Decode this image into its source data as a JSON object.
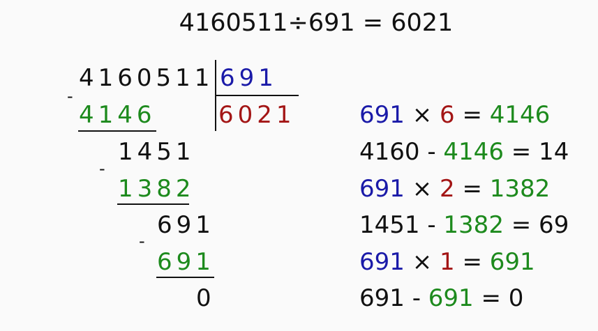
{
  "title": "4160511÷691 = 6021",
  "colors": {
    "black": "#111111",
    "blue": "#1a1aa8",
    "red": "#a31515",
    "green": "#1d8a1d"
  },
  "division": {
    "dividend": "4160511",
    "divisor": "691",
    "quotient": "6021",
    "steps": [
      {
        "subtrahend": "4146",
        "remainder": "1451"
      },
      {
        "subtrahend": "1382",
        "remainder": "691"
      },
      {
        "subtrahend": "691",
        "remainder": "0"
      }
    ],
    "minus_sign": "-"
  },
  "equations": [
    [
      {
        "text": "691",
        "color": "blue"
      },
      {
        "text": " × ",
        "color": "black"
      },
      {
        "text": "6",
        "color": "red"
      },
      {
        "text": " = ",
        "color": "black"
      },
      {
        "text": "4146",
        "color": "green"
      }
    ],
    [
      {
        "text": "4160 - ",
        "color": "black"
      },
      {
        "text": "4146",
        "color": "green"
      },
      {
        "text": " = 14",
        "color": "black"
      }
    ],
    [
      {
        "text": "691",
        "color": "blue"
      },
      {
        "text": " × ",
        "color": "black"
      },
      {
        "text": "2",
        "color": "red"
      },
      {
        "text": " = ",
        "color": "black"
      },
      {
        "text": "1382",
        "color": "green"
      }
    ],
    [
      {
        "text": "1451 - ",
        "color": "black"
      },
      {
        "text": "1382",
        "color": "green"
      },
      {
        "text": " = 69",
        "color": "black"
      }
    ],
    [
      {
        "text": "691",
        "color": "blue"
      },
      {
        "text": " × ",
        "color": "black"
      },
      {
        "text": "1",
        "color": "red"
      },
      {
        "text": " = ",
        "color": "black"
      },
      {
        "text": "691",
        "color": "green"
      }
    ],
    [
      {
        "text": "691 - ",
        "color": "black"
      },
      {
        "text": "691",
        "color": "green"
      },
      {
        "text": " = 0",
        "color": "black"
      }
    ]
  ]
}
